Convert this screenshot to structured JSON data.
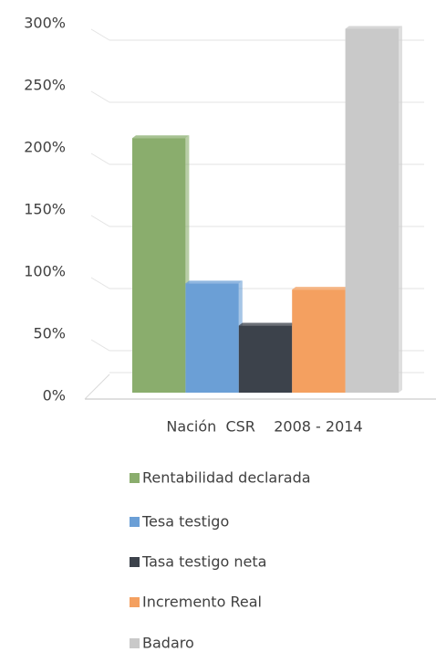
{
  "chart_data": {
    "type": "bar",
    "categories": [
      "Nación  CSR    2008 - 2014"
    ],
    "series": [
      {
        "name": "Rentabilidad declarada",
        "color": "#8aad6d",
        "values": [
          205
        ]
      },
      {
        "name": "Tesa testigo",
        "color": "#6b9fd6",
        "values": [
          88
        ]
      },
      {
        "name": "Tasa testigo neta",
        "color": "#3c424b",
        "values": [
          54
        ]
      },
      {
        "name": "Incremento Real",
        "color": "#f4a060",
        "values": [
          83
        ]
      },
      {
        "name": "Badaro",
        "color": "#c9c9c9",
        "values": [
          293
        ]
      }
    ],
    "ylim": [
      0,
      300
    ],
    "yticks": [
      {
        "value": 0,
        "label": "0%"
      },
      {
        "value": 50,
        "label": "50%"
      },
      {
        "value": 100,
        "label": "100%"
      },
      {
        "value": 150,
        "label": "150%"
      },
      {
        "value": 200,
        "label": "200%"
      },
      {
        "value": 250,
        "label": "250%"
      },
      {
        "value": 300,
        "label": "300%"
      }
    ],
    "grid": true,
    "legend": "bottom"
  }
}
